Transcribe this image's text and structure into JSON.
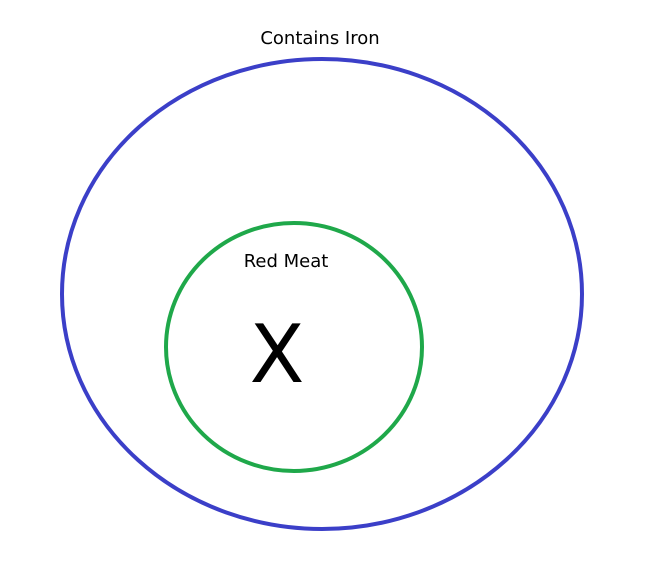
{
  "outer_set": {
    "label": "Contains Iron",
    "color": "#3b3fc8"
  },
  "inner_set": {
    "label": "Red Meat",
    "color": "#1fa84a"
  },
  "marker": {
    "label": "X"
  }
}
